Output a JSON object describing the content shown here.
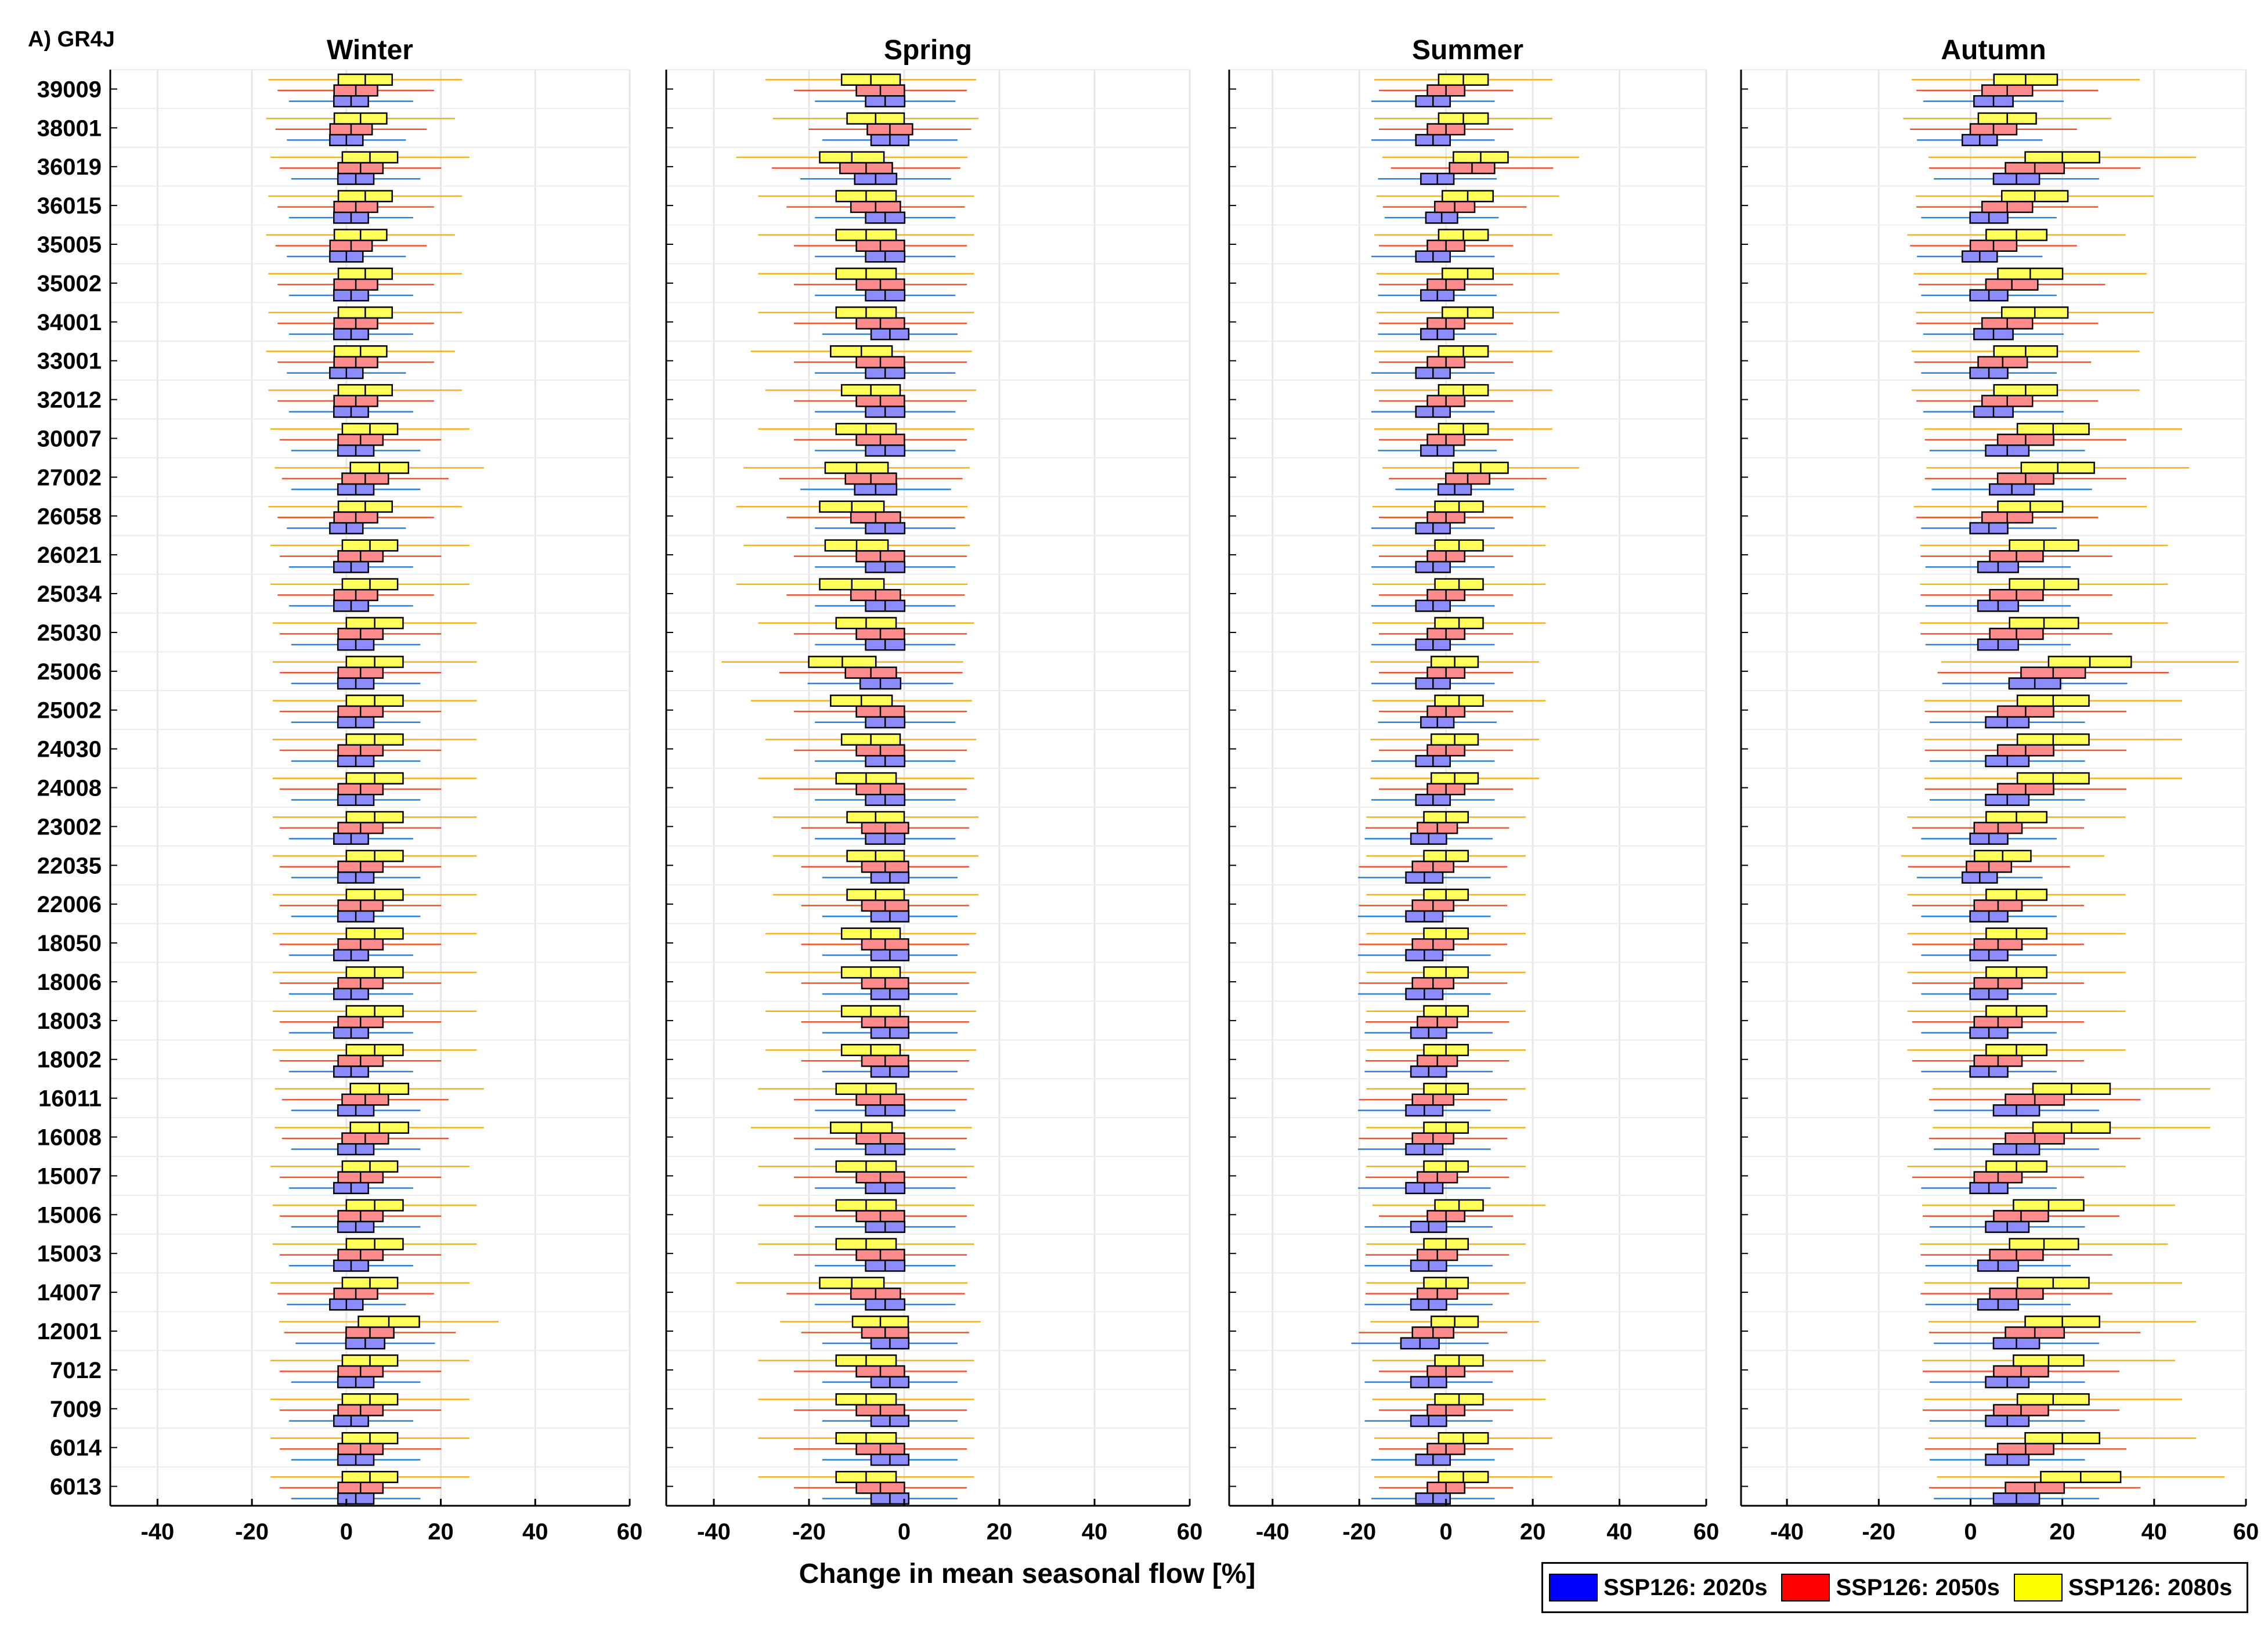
{
  "figure_label": "A) GR4J",
  "xlabel": "Change in mean seasonal flow [%]",
  "colors": {
    "2020s": "#0000ff",
    "2050s": "#ff0000",
    "2080s": "#ffff00"
  },
  "legend": [
    {
      "label": "SSP126: 2020s",
      "key": "2020s"
    },
    {
      "label": "SSP126: 2050s",
      "key": "2050s"
    },
    {
      "label": "SSP126: 2080s",
      "key": "2080s"
    }
  ],
  "chart_data": {
    "type": "box",
    "stations": [
      "39009",
      "38001",
      "36019",
      "36015",
      "35005",
      "35002",
      "34001",
      "33001",
      "32012",
      "30007",
      "27002",
      "26058",
      "26021",
      "25034",
      "25030",
      "25006",
      "25002",
      "24030",
      "24008",
      "23002",
      "22035",
      "22006",
      "18050",
      "18006",
      "18003",
      "18002",
      "16011",
      "16008",
      "15007",
      "15006",
      "15003",
      "14007",
      "12001",
      "7012",
      "7009",
      "6014",
      "6013"
    ],
    "xlim": [
      -50,
      60
    ],
    "xticks": [
      -40,
      -20,
      0,
      20,
      40,
      60
    ],
    "grid": true,
    "legend_position": "bottom-right",
    "panels": [
      {
        "title": "Winter",
        "series": [
          {
            "name": "SSP126: 2020s",
            "median": [
              1,
              0,
              2,
              1,
              0,
              1,
              1,
              0,
              1,
              2,
              2,
              0,
              1,
              1,
              2,
              2,
              2,
              2,
              2,
              1,
              2,
              2,
              1,
              1,
              1,
              1,
              2,
              2,
              1,
              2,
              1,
              0,
              4,
              2,
              1,
              2,
              2
            ]
          },
          {
            "name": "SSP126: 2050s",
            "median": [
              2,
              1,
              3,
              2,
              1,
              2,
              2,
              2,
              2,
              3,
              4,
              2,
              3,
              2,
              3,
              3,
              3,
              3,
              3,
              3,
              3,
              3,
              3,
              3,
              3,
              3,
              4,
              4,
              3,
              3,
              3,
              2,
              5,
              3,
              3,
              3,
              3
            ]
          },
          {
            "name": "SSP126: 2080s",
            "median": [
              4,
              3,
              5,
              4,
              3,
              4,
              4,
              3,
              4,
              5,
              7,
              4,
              5,
              5,
              6,
              6,
              6,
              6,
              6,
              6,
              6,
              6,
              6,
              6,
              6,
              6,
              7,
              7,
              5,
              6,
              6,
              5,
              9,
              5,
              5,
              5,
              5
            ]
          }
        ]
      },
      {
        "title": "Spring",
        "series": [
          {
            "name": "SSP126: 2020s",
            "median": [
              -4,
              -3,
              -6,
              -4,
              -4,
              -4,
              -3,
              -4,
              -4,
              -4,
              -6,
              -4,
              -4,
              -4,
              -4,
              -5,
              -4,
              -4,
              -4,
              -4,
              -3,
              -3,
              -3,
              -3,
              -3,
              -3,
              -4,
              -4,
              -4,
              -4,
              -4,
              -4,
              -3,
              -3,
              -3,
              -3,
              -3
            ]
          },
          {
            "name": "SSP126: 2050s",
            "median": [
              -5,
              -3,
              -8,
              -6,
              -5,
              -5,
              -5,
              -5,
              -5,
              -5,
              -7,
              -6,
              -5,
              -6,
              -5,
              -7,
              -5,
              -5,
              -5,
              -4,
              -4,
              -4,
              -4,
              -4,
              -4,
              -4,
              -5,
              -5,
              -5,
              -5,
              -5,
              -6,
              -4,
              -5,
              -5,
              -5,
              -5
            ]
          },
          {
            "name": "SSP126: 2080s",
            "median": [
              -7,
              -6,
              -11,
              -8,
              -8,
              -8,
              -8,
              -9,
              -7,
              -8,
              -10,
              -11,
              -10,
              -11,
              -8,
              -13,
              -9,
              -7,
              -8,
              -6,
              -6,
              -6,
              -7,
              -7,
              -7,
              -7,
              -8,
              -9,
              -8,
              -8,
              -8,
              -11,
              -5,
              -8,
              -8,
              -8,
              -8
            ]
          }
        ]
      },
      {
        "title": "Summer",
        "series": [
          {
            "name": "SSP126: 2020s",
            "median": [
              -3,
              -3,
              -2,
              -1,
              -3,
              -2,
              -2,
              -3,
              -3,
              -2,
              2,
              -3,
              -3,
              -3,
              -3,
              -3,
              -2,
              -3,
              -3,
              -4,
              -5,
              -5,
              -5,
              -5,
              -4,
              -4,
              -5,
              -5,
              -5,
              -4,
              -4,
              -4,
              -6,
              -4,
              -4,
              -3,
              -3
            ]
          },
          {
            "name": "SSP126: 2050s",
            "median": [
              0,
              0,
              6,
              2,
              0,
              0,
              0,
              0,
              0,
              0,
              5,
              0,
              0,
              0,
              0,
              0,
              0,
              0,
              0,
              -2,
              -3,
              -3,
              -3,
              -3,
              -2,
              -2,
              -3,
              -3,
              -2,
              0,
              -2,
              -2,
              -3,
              0,
              0,
              0,
              0
            ]
          },
          {
            "name": "SSP126: 2080s",
            "median": [
              4,
              4,
              8,
              5,
              4,
              5,
              5,
              4,
              4,
              4,
              8,
              3,
              3,
              3,
              3,
              2,
              3,
              2,
              2,
              0,
              0,
              0,
              0,
              0,
              0,
              0,
              0,
              0,
              0,
              3,
              0,
              0,
              2,
              3,
              3,
              4,
              4
            ]
          }
        ]
      },
      {
        "title": "Autumn",
        "series": [
          {
            "name": "SSP126: 2020s",
            "median": [
              5,
              2,
              10,
              4,
              2,
              4,
              5,
              4,
              5,
              8,
              9,
              4,
              6,
              6,
              6,
              14,
              8,
              8,
              8,
              4,
              2,
              4,
              4,
              4,
              4,
              4,
              10,
              10,
              4,
              8,
              6,
              6,
              10,
              8,
              8,
              8,
              10
            ]
          },
          {
            "name": "SSP126: 2050s",
            "median": [
              8,
              5,
              14,
              8,
              5,
              9,
              8,
              7,
              8,
              12,
              12,
              8,
              10,
              10,
              10,
              18,
              12,
              12,
              12,
              6,
              4,
              6,
              6,
              6,
              6,
              6,
              14,
              14,
              6,
              11,
              10,
              10,
              14,
              11,
              11,
              12,
              14
            ]
          },
          {
            "name": "SSP126: 2080s",
            "median": [
              12,
              8,
              20,
              14,
              10,
              13,
              14,
              12,
              12,
              18,
              19,
              13,
              16,
              16,
              16,
              26,
              18,
              18,
              18,
              10,
              7,
              10,
              10,
              10,
              10,
              10,
              22,
              22,
              10,
              17,
              16,
              18,
              20,
              17,
              18,
              20,
              24
            ]
          }
        ]
      }
    ]
  }
}
